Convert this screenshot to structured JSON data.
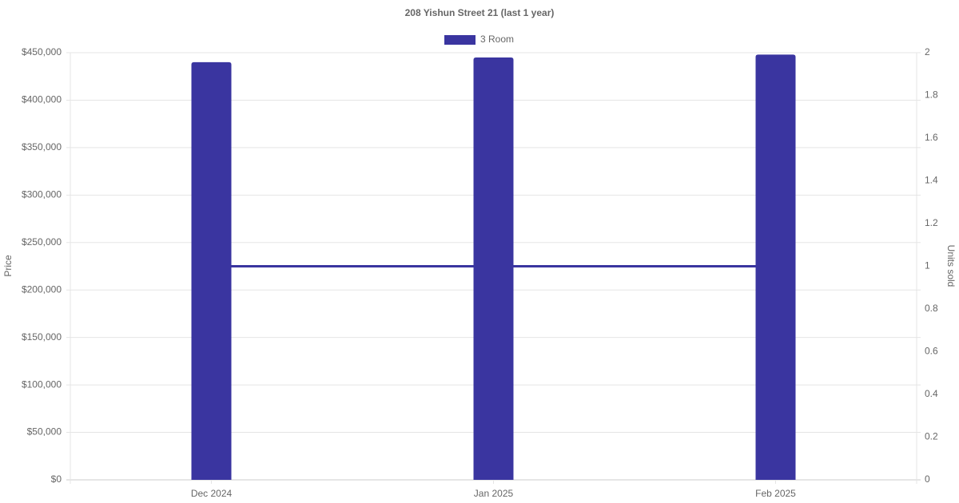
{
  "chart_data": {
    "type": "bar",
    "title": "208 Yishun Street 21 (last 1 year)",
    "categories": [
      "Dec 2024",
      "Jan 2025",
      "Feb 2025"
    ],
    "series": [
      {
        "name": "3 Room",
        "color": "#3a35a0",
        "values": [
          440000,
          445000,
          448000
        ]
      },
      {
        "type": "line",
        "axis": "y2",
        "color": "#3a35a0",
        "values": [
          1,
          1,
          1
        ]
      }
    ],
    "y_label": "Price",
    "y2_label": "Units sold",
    "ylim": [
      0,
      450000
    ],
    "yticks": [
      {
        "value": 0,
        "label": "$0"
      },
      {
        "value": 50000,
        "label": "$50,000"
      },
      {
        "value": 100000,
        "label": "$100,000"
      },
      {
        "value": 150000,
        "label": "$150,000"
      },
      {
        "value": 200000,
        "label": "$200,000"
      },
      {
        "value": 250000,
        "label": "$250,000"
      },
      {
        "value": 300000,
        "label": "$300,000"
      },
      {
        "value": 350000,
        "label": "$350,000"
      },
      {
        "value": 400000,
        "label": "$400,000"
      },
      {
        "value": 450000,
        "label": "$450,000"
      }
    ],
    "y2lim": [
      0,
      2
    ],
    "y2ticks": [
      0,
      0.2,
      0.4,
      0.6,
      0.8,
      1,
      1.2,
      1.4,
      1.6,
      1.8,
      2
    ],
    "grid": true
  }
}
